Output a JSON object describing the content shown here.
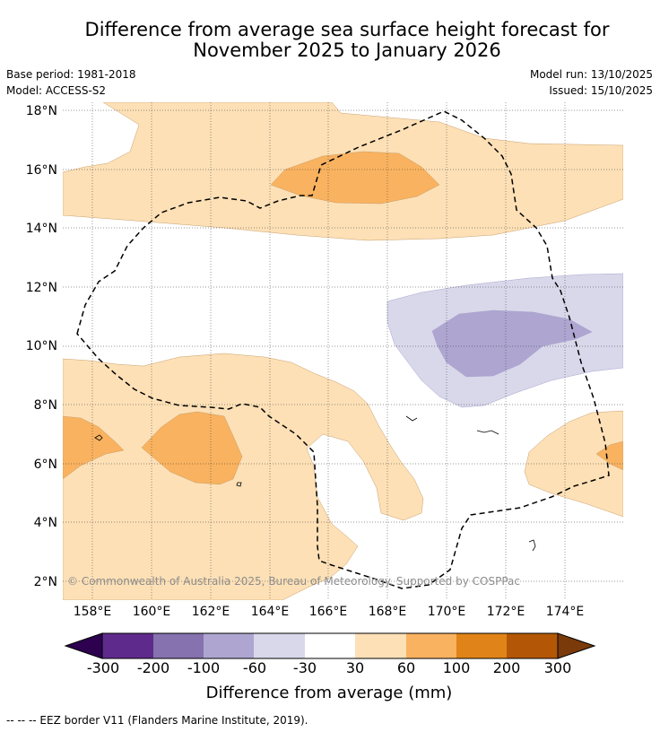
{
  "title": {
    "line1": "Difference from average sea surface height forecast for",
    "line2": "November 2025 to January 2026"
  },
  "meta": {
    "base_period": "Base period: 1981-2018",
    "model": "Model: ACCESS-S2",
    "model_run": "Model run: 13/10/2025",
    "issued": "Issued: 15/10/2025"
  },
  "map": {
    "lat_labels": [
      "18°N",
      "16°N",
      "14°N",
      "12°N",
      "10°N",
      "8°N",
      "6°N",
      "4°N",
      "2°N"
    ],
    "lon_labels": [
      "158°E",
      "160°E",
      "162°E",
      "164°E",
      "166°E",
      "168°E",
      "170°E",
      "172°E",
      "174°E"
    ],
    "copyright": "© Commonwealth of Australia 2025, Bureau of Meteorology. Supported by COSPPac"
  },
  "colorbar": {
    "labels": [
      "-300",
      "-200",
      "-100",
      "-60",
      "-30",
      "30",
      "60",
      "100",
      "200",
      "300"
    ],
    "colors": [
      "#2d0050",
      "#5e2a8c",
      "#8572ae",
      "#aea6d1",
      "#d8d8ea",
      "#ffffff",
      "#fde0b6",
      "#f9b25f",
      "#e08318",
      "#b35706",
      "#7a3a0a"
    ],
    "title": "Difference from average (mm)"
  },
  "legend_note": "--  --  -- EEZ border V11 (Flanders Marine Institute, 2019)."
}
